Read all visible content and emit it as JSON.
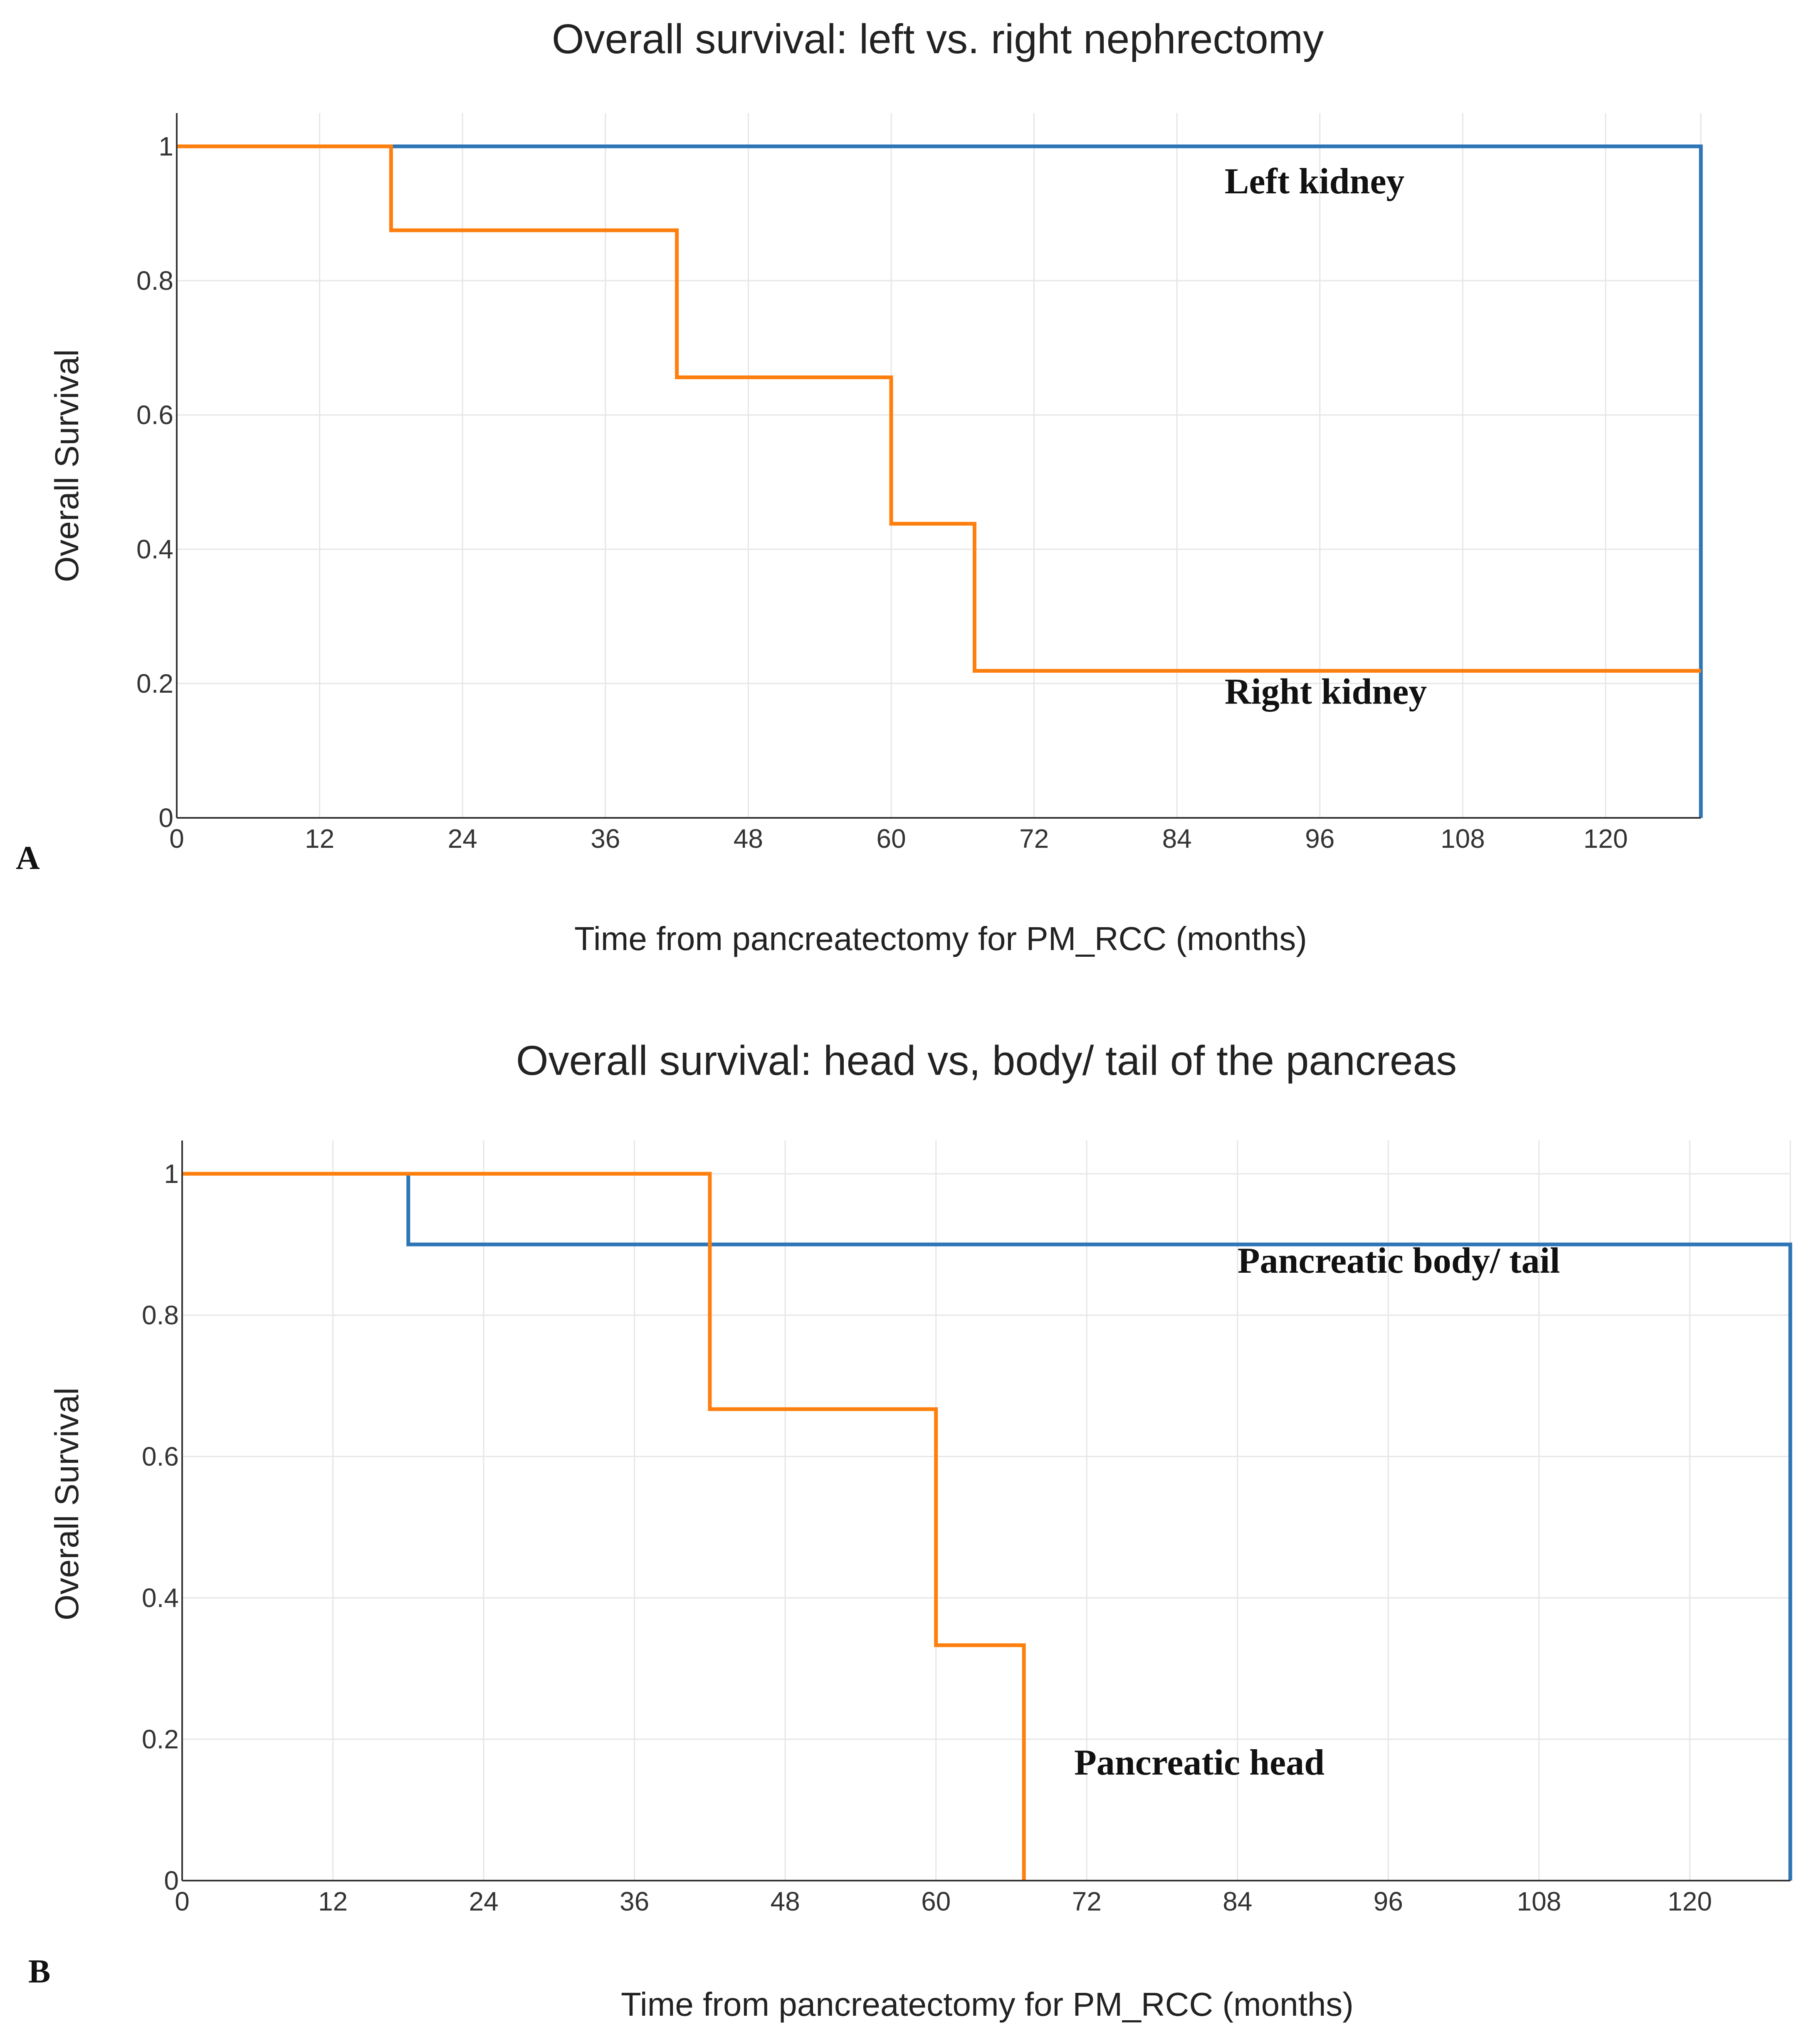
{
  "chart_data": [
    {
      "type": "line",
      "panel_label": "A",
      "title": "Overall survival: left vs. right nephrectomy",
      "xlabel": "Time from pancreatectomy for PM_RCC (months)",
      "ylabel": "Overall Survival",
      "xlim": [
        0,
        128
      ],
      "ylim": [
        0,
        1
      ],
      "x_ticks": [
        0,
        12,
        24,
        36,
        48,
        60,
        72,
        84,
        96,
        108,
        120
      ],
      "x_tick_labels": [
        "0",
        "12",
        "24",
        "36",
        "48",
        "60",
        "72",
        "84",
        "96",
        "108",
        "120"
      ],
      "y_ticks": [
        0,
        0.2,
        0.4,
        0.6,
        0.8,
        1
      ],
      "y_tick_labels": [
        "0",
        "0.2",
        "0.4",
        "0.6",
        "0.8",
        "1"
      ],
      "grid": true,
      "series": [
        {
          "name": "Left kidney",
          "color": "#2e75b6",
          "step": true,
          "x": [
            0,
            128,
            128
          ],
          "y": [
            1,
            1,
            0
          ]
        },
        {
          "name": "Right kidney",
          "color": "#ff7f0e",
          "step": true,
          "x": [
            0,
            18,
            42,
            60,
            67,
            128
          ],
          "y": [
            1,
            0.875,
            0.656,
            0.438,
            0.219,
            0.219
          ]
        }
      ],
      "annotations": [
        {
          "text": "Left kidney",
          "x": 88,
          "y": 0.93
        },
        {
          "text": "Right kidney",
          "x": 88,
          "y": 0.17
        }
      ]
    },
    {
      "type": "line",
      "panel_label": "B",
      "title": "Overall survival: head vs, body/ tail of the pancreas",
      "xlabel": "Time from pancreatectomy for PM_RCC (months)",
      "ylabel": "Overall Survival",
      "xlim": [
        0,
        128
      ],
      "ylim": [
        0,
        1
      ],
      "x_ticks": [
        0,
        12,
        24,
        36,
        48,
        60,
        72,
        84,
        96,
        108,
        120
      ],
      "x_tick_labels": [
        "0",
        "12",
        "24",
        "36",
        "48",
        "60",
        "72",
        "84",
        "96",
        "108",
        "120"
      ],
      "y_ticks": [
        0,
        0.2,
        0.4,
        0.6,
        0.8,
        1
      ],
      "y_tick_labels": [
        "0",
        "0.2",
        "0.4",
        "0.6",
        "0.8",
        "1"
      ],
      "grid": true,
      "series": [
        {
          "name": "Pancreatic body/ tail",
          "color": "#2e75b6",
          "step": true,
          "x": [
            0,
            18,
            128,
            128
          ],
          "y": [
            1,
            0.9,
            0.9,
            0
          ]
        },
        {
          "name": "Pancreatic head",
          "color": "#ff7f0e",
          "step": true,
          "x": [
            0,
            42,
            60,
            67,
            67
          ],
          "y": [
            1,
            0.667,
            0.333,
            0.333,
            0
          ]
        }
      ],
      "annotations": [
        {
          "text": "Pancreatic body/ tail",
          "x": 84,
          "y": 0.86
        },
        {
          "text": "Pancreatic head",
          "x": 71,
          "y": 0.15
        }
      ]
    }
  ]
}
